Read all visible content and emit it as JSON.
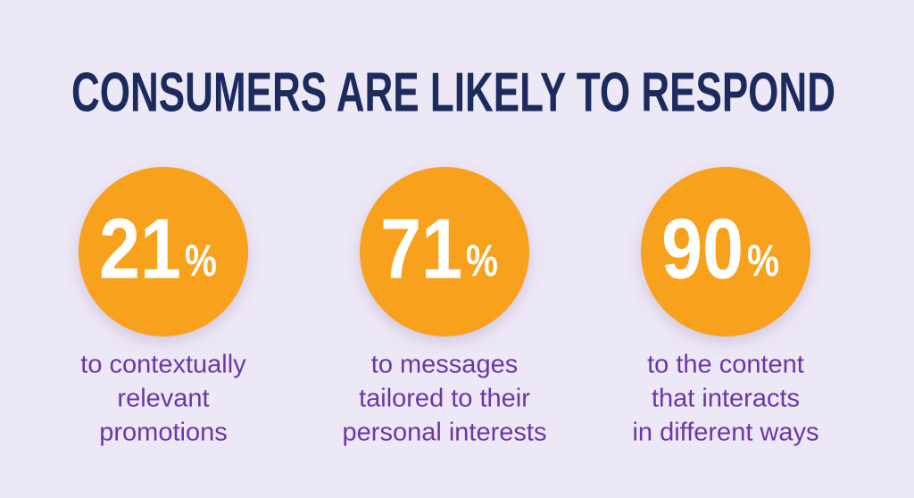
{
  "title": "CONSUMERS ARE LIKELY TO RESPOND",
  "stats": [
    {
      "number": "21",
      "unit": "%",
      "description": [
        "to contextually",
        "relevant",
        "promotions"
      ]
    },
    {
      "number": "71",
      "unit": "%",
      "description": [
        "to messages",
        "tailored to their",
        "personal interests"
      ]
    },
    {
      "number": "90",
      "unit": "%",
      "description": [
        "to the content",
        "that interacts",
        "in different ways"
      ]
    }
  ]
}
